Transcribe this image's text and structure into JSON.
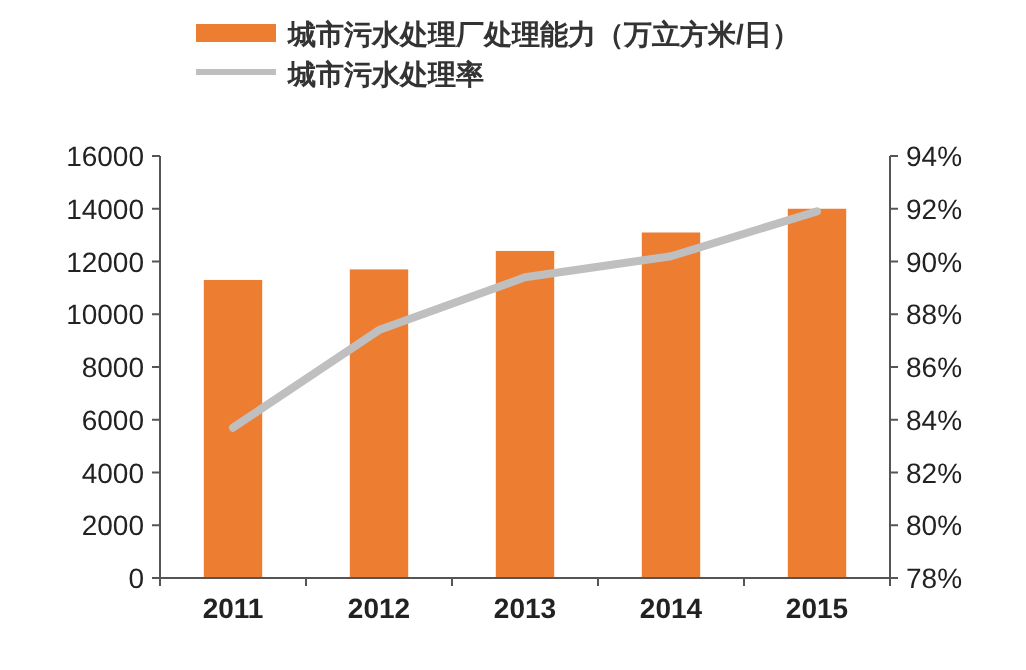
{
  "chart_data": {
    "type": "bar",
    "categories": [
      "2011",
      "2012",
      "2013",
      "2014",
      "2015"
    ],
    "series": [
      {
        "name": "城市污水处理厂处理能力（万立方米/日）",
        "color": "#ed7d31",
        "values": [
          11300,
          11700,
          12400,
          13100,
          14000
        ]
      },
      {
        "name": "城市污水处理率",
        "type": "line",
        "axis": "y2",
        "color": "#bfbfbf",
        "values": [
          83.7,
          87.4,
          89.4,
          90.2,
          91.9
        ]
      }
    ],
    "ylim": [
      0,
      16000
    ],
    "yticks": [
      0,
      2000,
      4000,
      6000,
      8000,
      10000,
      12000,
      14000,
      16000
    ],
    "y2lim": [
      78,
      94
    ],
    "y2ticks": [
      {
        "value": 78,
        "label": "78%"
      },
      {
        "value": 80,
        "label": "80%"
      },
      {
        "value": 82,
        "label": "82%"
      },
      {
        "value": 84,
        "label": "84%"
      },
      {
        "value": 86,
        "label": "86%"
      },
      {
        "value": 88,
        "label": "88%"
      },
      {
        "value": 90,
        "label": "90%"
      },
      {
        "value": 92,
        "label": "92%"
      },
      {
        "value": 94,
        "label": "94%"
      }
    ],
    "legend": "top left",
    "grid": false
  }
}
